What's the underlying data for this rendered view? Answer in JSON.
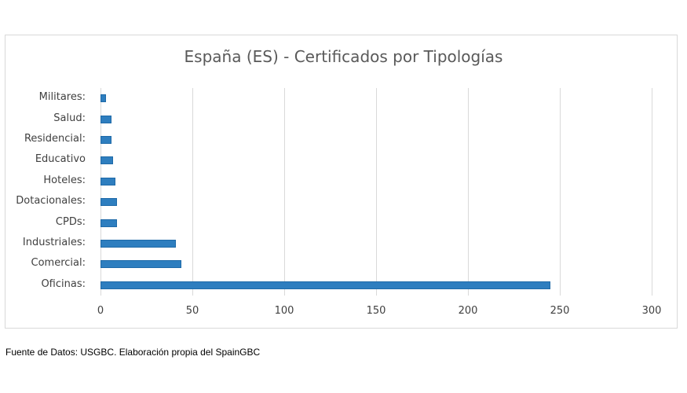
{
  "chart_data": {
    "type": "bar",
    "orientation": "horizontal",
    "title": "España (ES) - Certificados por Tipologías",
    "xlabel": "",
    "ylabel": "",
    "xlim": [
      0,
      300
    ],
    "xticks": [
      0,
      50,
      100,
      150,
      200,
      250,
      300
    ],
    "grid": true,
    "legend": null,
    "categories": [
      "Militares:",
      "Salud:",
      "Residencial:",
      "Educativo",
      "Hoteles:",
      "Dotacionales:",
      "CPDs:",
      "Industriales:",
      "Comercial:",
      "Oficinas:"
    ],
    "values": [
      3,
      6,
      6,
      7,
      8,
      9,
      9,
      41,
      44,
      245
    ],
    "bar_color": "#2e7ebf"
  },
  "footer": {
    "source": "Fuente de Datos: USGBC. Elaboración propia del SpainGBC"
  }
}
